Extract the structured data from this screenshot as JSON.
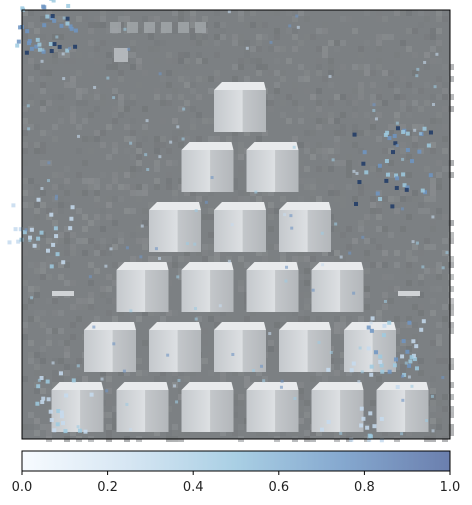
{
  "chart_data": {
    "type": "heatmap",
    "title": "",
    "xlabel": "",
    "ylabel": "",
    "colorbar": {
      "range": [
        0,
        1
      ],
      "ticks": [
        0,
        0.2,
        0.4,
        0.6,
        0.8,
        1
      ],
      "tick_labels": [
        "0.0",
        "0.2",
        "0.4",
        "0.6",
        "0.8",
        "1.0"
      ],
      "colormap": [
        "#f7fbff",
        "#c6dbef",
        "#9ecae1",
        "#6f95c3",
        "#4a5d8f"
      ],
      "orientation": "horizontal",
      "placement": "bottom"
    },
    "image_grayscale_background": "#7c8083",
    "content": "grayscale image of a pyramid of stacked cubes (6 rows: 1,2,3,4,5,6) overlaid with a sparse blue attribution map",
    "pyramid_rows": [
      1,
      2,
      3,
      4,
      5,
      6
    ],
    "attribution_hotspots": [
      {
        "region": "top-left corner",
        "level": 0.95
      },
      {
        "region": "upper-right area",
        "level": 1.0
      },
      {
        "region": "left edge",
        "level": 0.6
      },
      {
        "region": "right edge lower",
        "level": 0.75
      },
      {
        "region": "bottom-left cube",
        "level": 0.55
      },
      {
        "region": "bottom-right cubes",
        "level": 0.5
      }
    ]
  }
}
